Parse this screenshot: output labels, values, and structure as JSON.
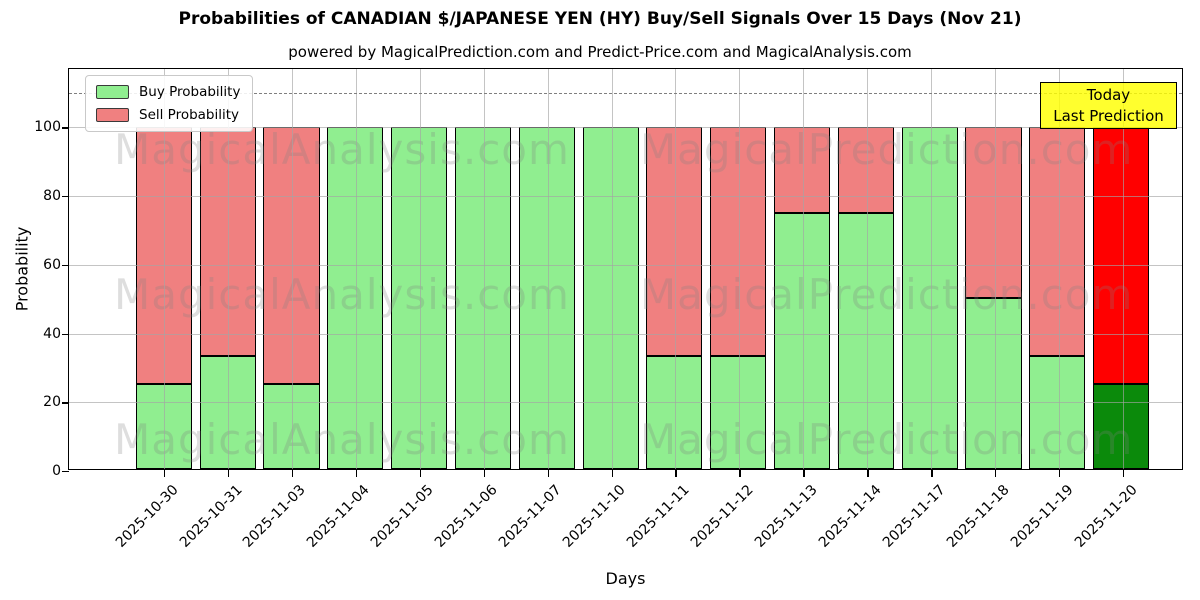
{
  "header": {
    "title": "Probabilities of CANADIAN $/JAPANESE YEN (HY) Buy/Sell Signals Over 15 Days (Nov 21)",
    "subtitle": "powered by MagicalPrediction.com and Predict-Price.com and MagicalAnalysis.com"
  },
  "legend": {
    "buy_label": "Buy Probability",
    "sell_label": "Sell Probability"
  },
  "annotation": {
    "line1": "Today",
    "line2": "Last Prediction"
  },
  "axes": {
    "ylabel": "Probability",
    "xlabel": "Days",
    "yticks": [
      0,
      20,
      40,
      60,
      80,
      100
    ]
  },
  "colors": {
    "buy": "#90ee90",
    "sell": "#f08080",
    "today_buy": "#0b8a0b",
    "today_sell": "#ff0000",
    "annotation_bg": "#ffff00",
    "grid": "#b0b0b0"
  },
  "watermarks": [
    "MagicalAnalysis.com",
    "MagicalPrediction.com"
  ],
  "chart_data": {
    "type": "bar",
    "stacked": true,
    "title": "Probabilities of CANADIAN $/JAPANESE YEN (HY) Buy/Sell Signals Over 15 Days (Nov 21)",
    "xlabel": "Days",
    "ylabel": "Probability",
    "ylim": [
      0,
      117
    ],
    "grid": true,
    "legend_position": "upper left",
    "dashed_reference_line_y": 110,
    "categories": [
      "2025-10-30",
      "2025-10-31",
      "2025-11-03",
      "2025-11-04",
      "2025-11-05",
      "2025-11-06",
      "2025-11-07",
      "2025-11-10",
      "2025-11-11",
      "2025-11-12",
      "2025-11-13",
      "2025-11-14",
      "2025-11-17",
      "2025-11-18",
      "2025-11-19",
      "2025-11-20"
    ],
    "series": [
      {
        "name": "Buy Probability",
        "values": [
          25,
          33,
          25,
          100,
          100,
          100,
          100,
          100,
          33,
          33,
          75,
          75,
          100,
          50,
          33,
          25
        ]
      },
      {
        "name": "Sell Probability",
        "values": [
          75,
          67,
          75,
          0,
          0,
          0,
          0,
          0,
          67,
          67,
          25,
          25,
          0,
          50,
          67,
          75
        ]
      }
    ],
    "today_index": 15
  }
}
